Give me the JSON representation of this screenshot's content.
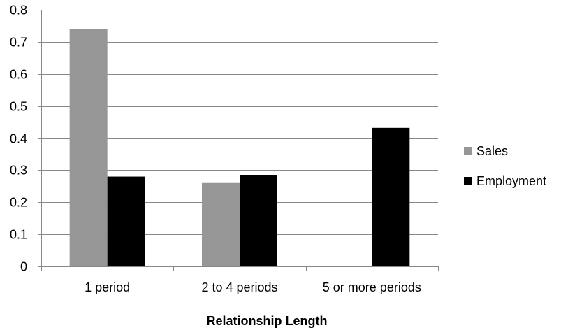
{
  "chart_data": {
    "type": "bar",
    "title": "",
    "xlabel": "Relationship Length",
    "ylabel": "",
    "categories": [
      "1 period",
      "2 to 4 periods",
      "5 or more periods"
    ],
    "series": [
      {
        "name": "Sales",
        "values": [
          0.74,
          0.26,
          0.0
        ],
        "color": "#969696"
      },
      {
        "name": "Employment",
        "values": [
          0.28,
          0.285,
          0.432
        ],
        "color": "#000000"
      }
    ],
    "ylim": [
      0,
      0.8
    ],
    "yticks": [
      0,
      0.1,
      0.2,
      0.3,
      0.4,
      0.5,
      0.6,
      0.7,
      0.8
    ],
    "ytick_labels": [
      "0",
      "0.1",
      "0.2",
      "0.3",
      "0.4",
      "0.5",
      "0.6",
      "0.7",
      "0.8"
    ],
    "grid": true,
    "legend_position": "right",
    "gridline_color": "#888888",
    "axis_color": "#888888"
  }
}
